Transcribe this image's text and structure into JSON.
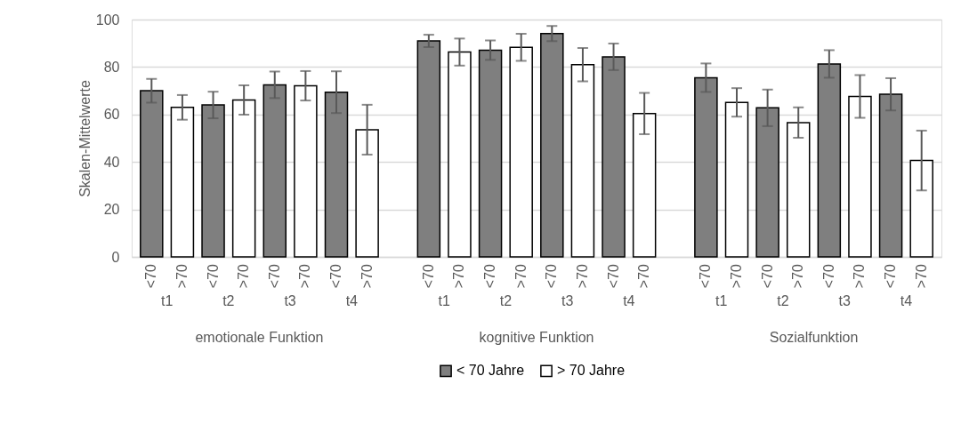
{
  "chart_data": {
    "type": "bar",
    "ylabel": "Skalen-Mittelwerte",
    "categories": [
      "<70",
      ">70",
      "<70",
      ">70",
      "<70",
      ">70",
      "<70",
      ">70",
      null,
      "<70",
      ">70",
      "<70",
      ">70",
      "<70",
      ">70",
      "<70",
      ">70",
      null,
      "<70",
      ">70",
      "<70",
      ">70",
      "<70",
      ">70",
      "<70",
      ">70"
    ],
    "series": [
      {
        "name": "< 70 Jahre",
        "color": "#7f7f7f",
        "values": [
          70,
          null,
          64,
          null,
          72.5,
          null,
          69.4,
          null,
          null,
          91,
          null,
          87.1,
          null,
          94.1,
          null,
          84.3,
          null,
          null,
          75.5,
          null,
          62.8,
          null,
          81.3,
          null,
          68.5,
          null
        ],
        "errors": [
          5,
          null,
          5.6,
          null,
          5.6,
          null,
          8.8,
          null,
          null,
          2.6,
          null,
          4.1,
          null,
          3.2,
          null,
          5.6,
          null,
          null,
          6,
          null,
          7.7,
          null,
          5.8,
          null,
          6.8,
          null
        ]
      },
      {
        "name": "> 70 Jahre",
        "color": "#ffffff",
        "values": [
          null,
          63,
          null,
          66.1,
          null,
          72.1,
          null,
          53.6,
          null,
          null,
          86.3,
          null,
          88.3,
          null,
          81,
          null,
          60.4,
          null,
          null,
          65.1,
          null,
          56.6,
          null,
          67.6,
          null,
          40.6
        ],
        "errors": [
          null,
          5.2,
          null,
          6.2,
          null,
          6.2,
          null,
          10.5,
          null,
          null,
          5.7,
          null,
          5.7,
          null,
          7,
          null,
          8.7,
          null,
          null,
          6,
          null,
          6.4,
          null,
          9,
          null,
          12.6
        ]
      }
    ],
    "ylim": [
      0,
      100
    ],
    "yticks": [
      0,
      20,
      40,
      60,
      80,
      100
    ],
    "grid": "y",
    "legend": "bottom",
    "annotations": [
      "t1",
      "t2",
      "t3",
      "t4",
      "t1",
      "t2",
      "t3",
      "t4",
      "t1",
      "t2",
      "t3",
      "t4",
      "emotionale Funktion",
      "kognitive Funktion",
      "Sozialfunktion"
    ]
  }
}
